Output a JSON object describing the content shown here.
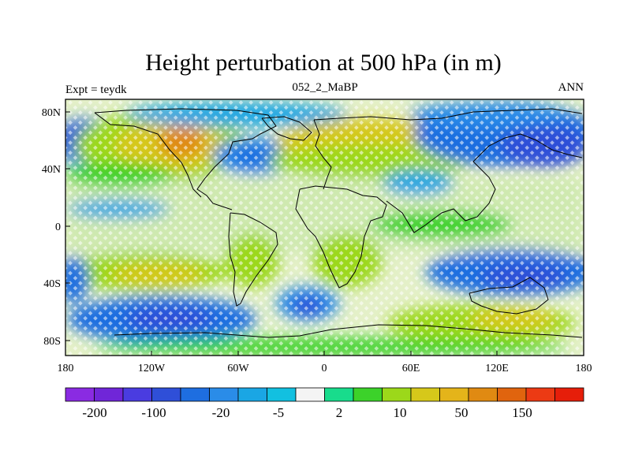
{
  "title": "Height perturbation at 500 hPa (in m)",
  "left_label": "Expt = teydk",
  "center_label": "052_2_MaBP",
  "right_label": "ANN",
  "x_ticks": [
    "180",
    "120W",
    "60W",
    "0",
    "60E",
    "120E",
    "180"
  ],
  "y_ticks": [
    "80N",
    "40N",
    "0",
    "40S",
    "80S"
  ],
  "colorbar": {
    "colors": [
      "#8a2be2",
      "#7026d8",
      "#4a3ce0",
      "#2f4fd8",
      "#1e6ee0",
      "#2a8ce8",
      "#1aa6e4",
      "#12c0e0",
      "#f4f4f4",
      "#18dc8c",
      "#3cd22a",
      "#9cd81a",
      "#d6c81a",
      "#e4b41a",
      "#e08a12",
      "#e0640e",
      "#ec3a14",
      "#e61e0a"
    ],
    "labels": [
      "-200",
      "-100",
      "-20",
      "-5",
      "2",
      "10",
      "50",
      "150"
    ]
  },
  "map": {
    "projection": "cylindrical-equidistant",
    "lon_range": [
      -180,
      180
    ],
    "lat_range": [
      -90,
      90
    ],
    "variable": "500 hPa height perturbation",
    "units": "m",
    "features": [
      {
        "name": "north-pacific-low",
        "lon": -160,
        "lat": 60,
        "value": -40
      },
      {
        "name": "north-america-high",
        "lon": -95,
        "lat": 58,
        "value": 80
      },
      {
        "name": "north-atlantic-low",
        "lon": -45,
        "lat": 48,
        "value": -30
      },
      {
        "name": "eurasia-high",
        "lon": 50,
        "lat": 52,
        "value": 20
      },
      {
        "name": "east-asia-low",
        "lon": 150,
        "lat": 55,
        "value": -80
      },
      {
        "name": "southern-ocean-pacific-low",
        "lon": -110,
        "lat": -65,
        "value": -60
      },
      {
        "name": "south-atlantic-low",
        "lon": -10,
        "lat": -50,
        "value": -60
      },
      {
        "name": "indian-ocean-low",
        "lon": 140,
        "lat": -32,
        "value": -50
      },
      {
        "name": "southern-midlatitude-high",
        "lon": 130,
        "lat": -60,
        "value": 40
      }
    ]
  }
}
